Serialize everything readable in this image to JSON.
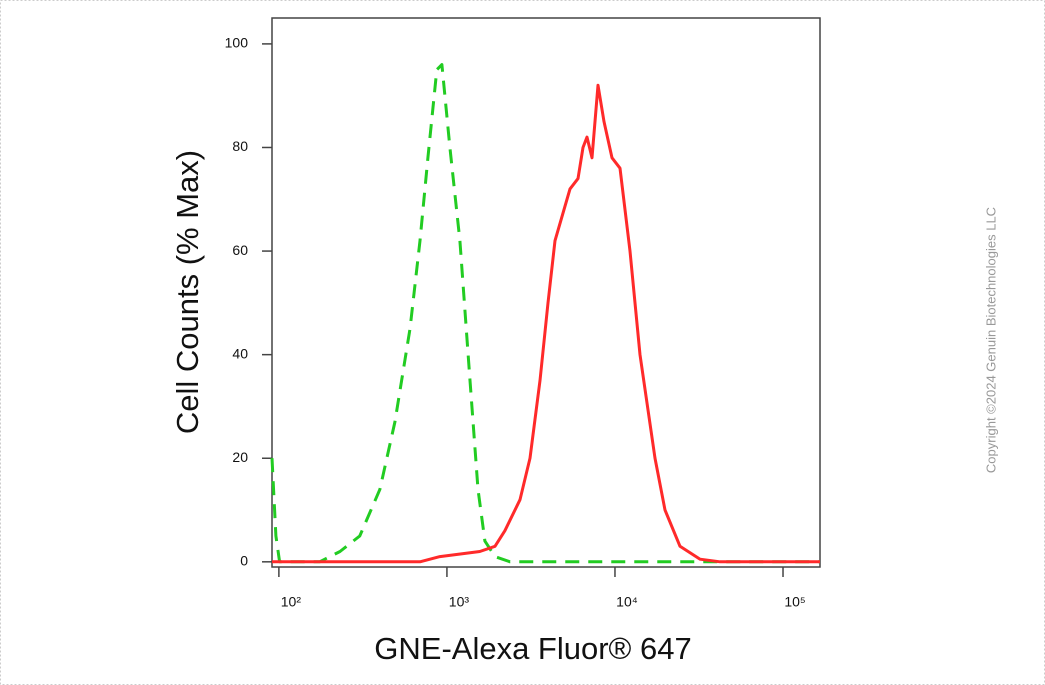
{
  "chart_data": {
    "type": "histogram-overlay",
    "ylabel": "Cell Counts (% Max)",
    "xlabel": "GNE-Alexa Fluor® 647",
    "copyright": "Copyright ©2024 Genuin Biotechnologies LLC",
    "xscale": "log",
    "xlim": [
      91,
      166000
    ],
    "ylim": [
      -1,
      105
    ],
    "xticks": [
      {
        "value": 100,
        "label": "10²"
      },
      {
        "value": 1000,
        "label": "10³"
      },
      {
        "value": 10000,
        "label": "10⁴"
      },
      {
        "value": 100000,
        "label": "10⁵"
      }
    ],
    "yticks": [
      0,
      20,
      40,
      60,
      80,
      100
    ],
    "series": [
      {
        "color": "#22cc22",
        "dash": true,
        "x": [
          91,
          96,
          101,
          175,
          231,
          303,
          399,
          490,
          603,
          691,
          771,
          871,
          933,
          1042,
          1195,
          1371,
          1530,
          1683,
          1932,
          2372,
          8147,
          32100,
          166000
        ],
        "values": [
          20,
          5,
          0,
          0,
          2,
          5,
          14,
          27,
          45,
          62,
          78,
          95,
          96,
          80,
          62,
          35,
          14,
          4,
          1,
          0,
          0,
          0,
          0
        ]
      },
      {
        "color": "#ff2a2a",
        "dash": false,
        "x": [
          91,
          691,
          908,
          1570,
          1932,
          2213,
          2722,
          3120,
          3580,
          3993,
          4395,
          5400,
          6026,
          6454,
          6814,
          7298,
          7925,
          8610,
          9600,
          10710,
          12280,
          14090,
          17300,
          19860,
          24380,
          32100,
          42170,
          166000
        ],
        "values": [
          0,
          0,
          1,
          2,
          3,
          6,
          12,
          20,
          35,
          50,
          62,
          72,
          74,
          80,
          82,
          78,
          92,
          85,
          78,
          76,
          60,
          40,
          20,
          10,
          3,
          0.5,
          0,
          0
        ]
      }
    ]
  }
}
